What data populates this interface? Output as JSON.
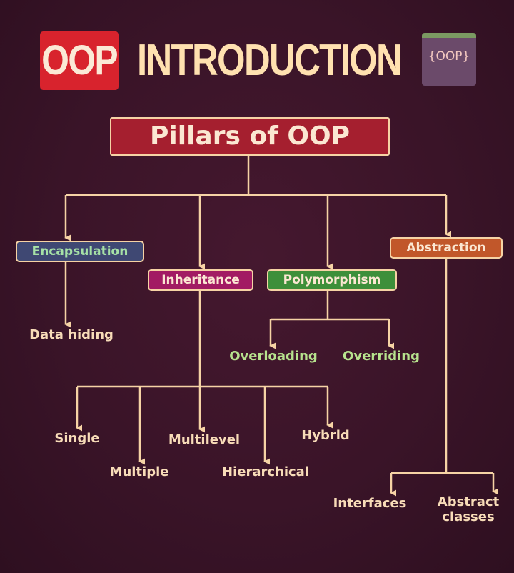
{
  "title": {
    "highlight": "OOP",
    "rest": "INTRODUCTION",
    "logo_text": "{OOP}"
  },
  "root": {
    "label": "Pillars of OOP"
  },
  "pillars": {
    "encapsulation": "Encapsulation",
    "inheritance": "Inheritance",
    "polymorphism": "Polymorphism",
    "abstraction": "Abstraction"
  },
  "encapsulation_children": {
    "data_hiding": "Data hiding"
  },
  "polymorphism_children": {
    "overloading": "Overloading",
    "overriding": "Overriding"
  },
  "inheritance_children": {
    "single": "Single",
    "multiple": "Multiple",
    "multilevel": "Multilevel",
    "hierarchical": "Hierarchical",
    "hybrid": "Hybrid"
  },
  "abstraction_children": {
    "interfaces": "Interfaces",
    "abstract_line1": "Abstract",
    "abstract_line2": "classes"
  },
  "colors": {
    "background": "#3a1428",
    "title_red": "#d8232d",
    "root_red": "#a51f2f",
    "encapsulation": "#3f4873",
    "inheritance": "#a21b63",
    "polymorphism": "#3d8f3a",
    "abstraction": "#c1572a",
    "connector": "#f6d3a5",
    "leaf_text": "#f8dcb8",
    "poly_leaf_text": "#b7e38e"
  }
}
